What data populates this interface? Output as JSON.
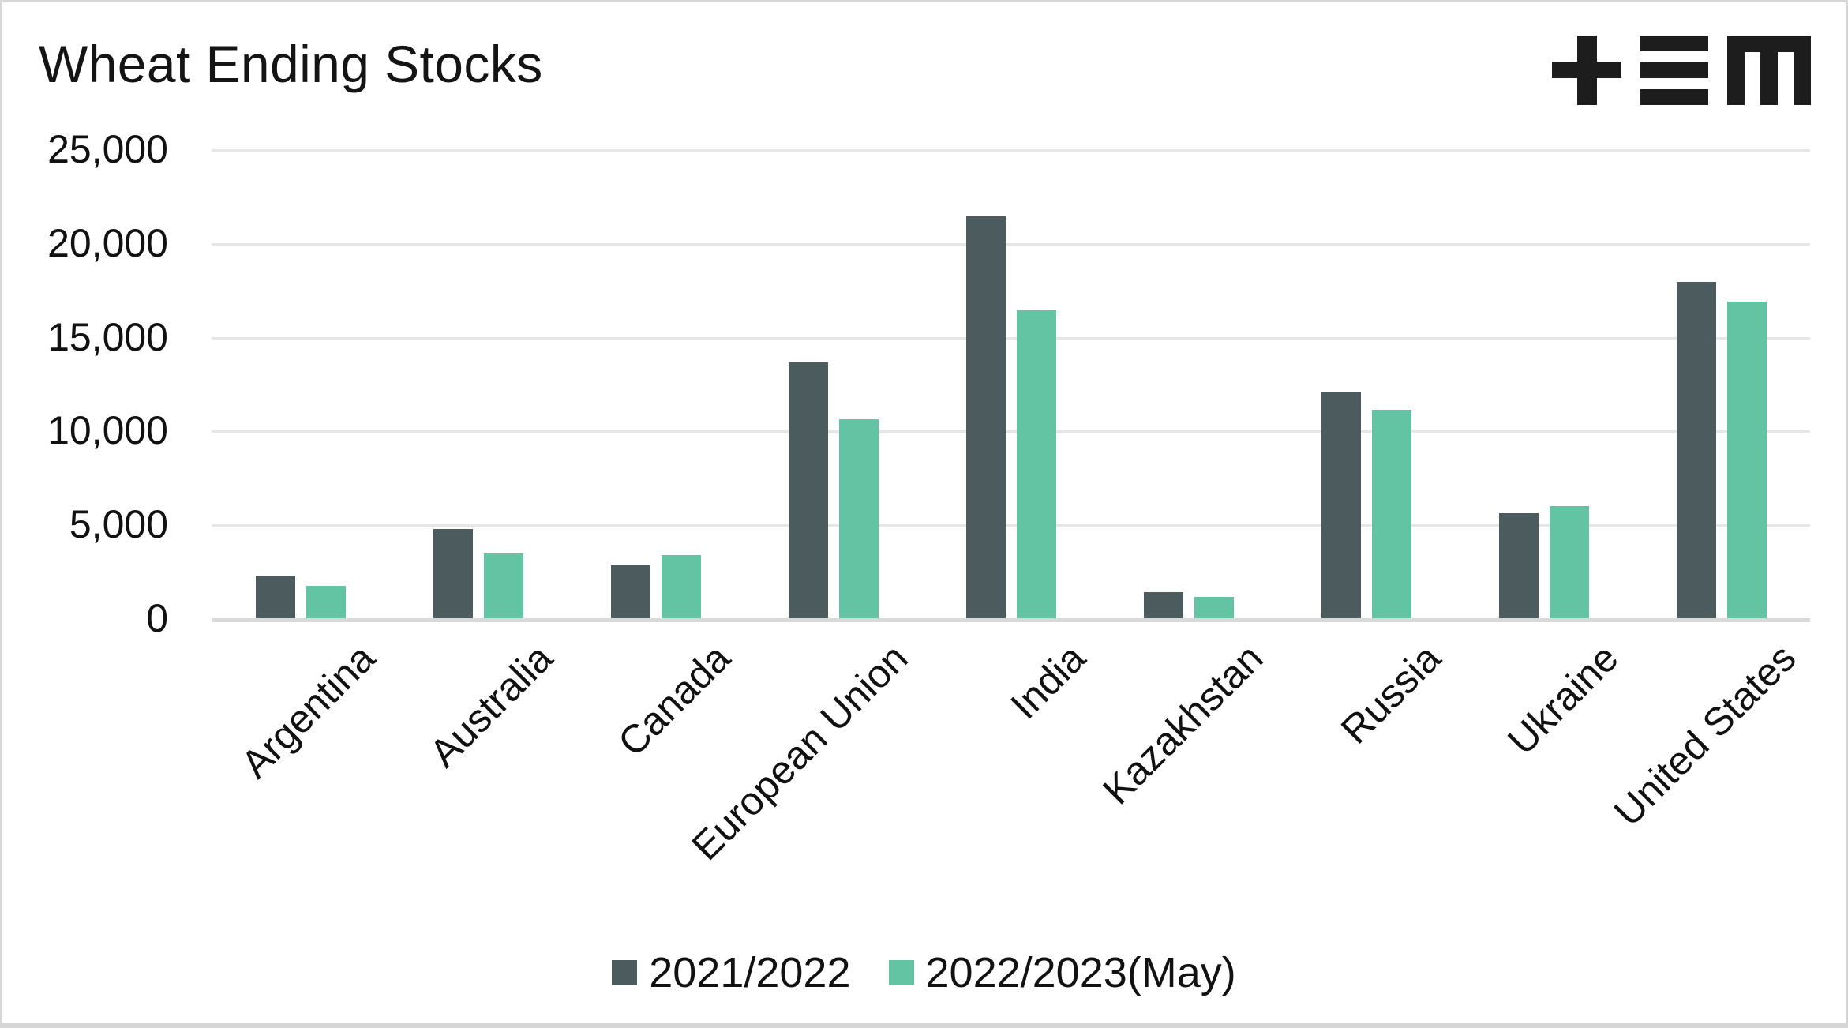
{
  "title": "Wheat Ending Stocks",
  "logo": {
    "name": "tem-logo",
    "color": "#1d1d1d"
  },
  "chart_data": {
    "type": "bar",
    "title": "Wheat Ending Stocks",
    "categories": [
      "Argentina",
      "Australia",
      "Canada",
      "European Union",
      "India",
      "Kazakhstan",
      "Russia",
      "Ukraine",
      "United States"
    ],
    "series": [
      {
        "name": "2021/2022",
        "color": "#4c5c5e",
        "values": [
          2270,
          4760,
          2820,
          13640,
          21420,
          1370,
          12060,
          5580,
          17930
        ]
      },
      {
        "name": "2022/2023(May)",
        "color": "#63c4a3",
        "values": [
          1730,
          3450,
          3370,
          10610,
          16420,
          1150,
          11120,
          5960,
          16870
        ]
      }
    ],
    "xlabel": "",
    "ylabel": "",
    "ylim": [
      0,
      25000
    ],
    "y_ticks": [
      "25,000",
      "20,000",
      "15,000",
      "10,000",
      "5,000",
      "0"
    ],
    "grid": "horizontal",
    "legend_position": "bottom-center",
    "x_label_rotation": -45
  },
  "style": {
    "gridline_color": "#e6e6e6",
    "baseline_color": "#d9d9d9",
    "text_color": "#111111",
    "background": "#ffffff",
    "border_color": "#d6d6d6"
  }
}
